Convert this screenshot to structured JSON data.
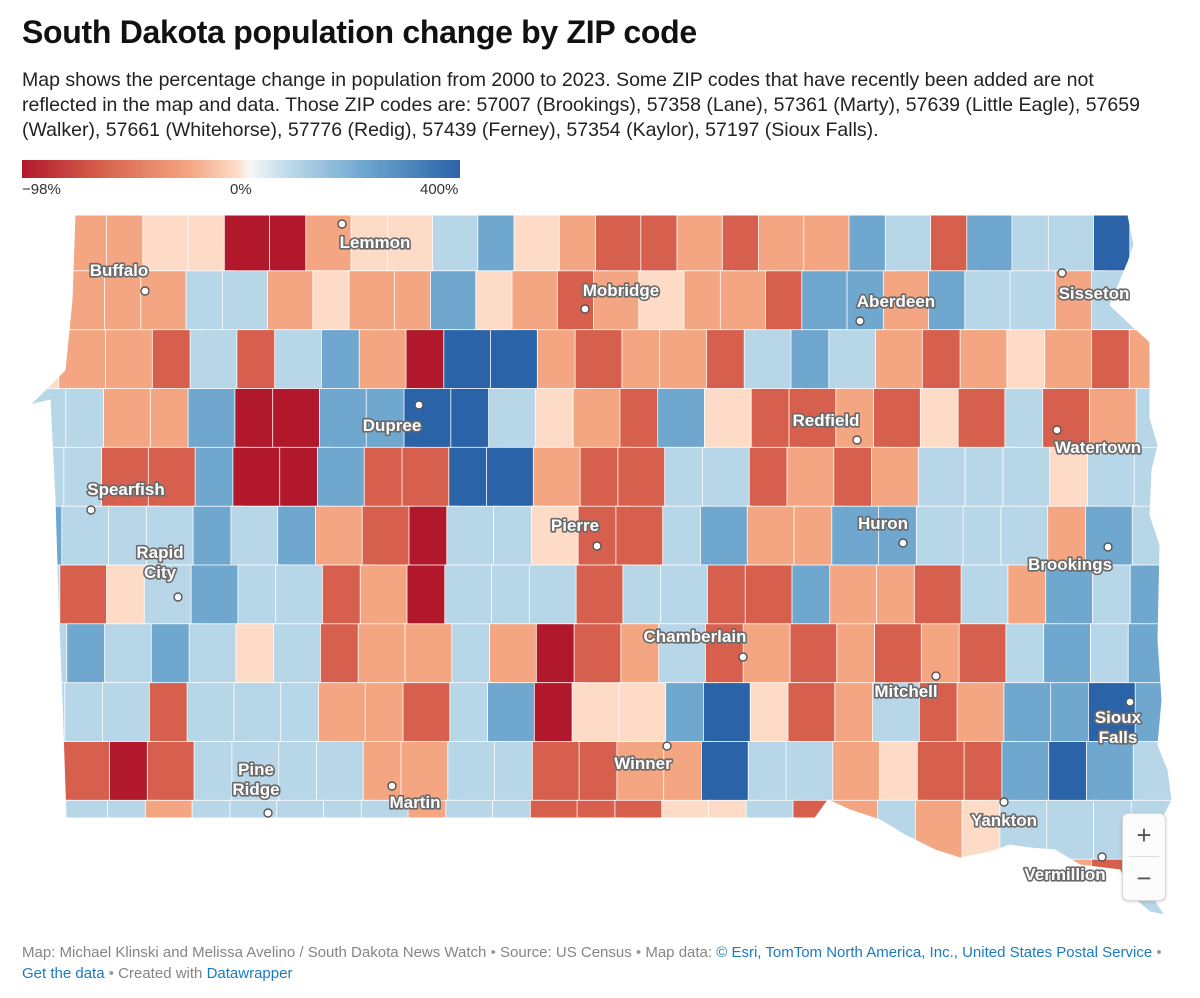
{
  "header": {
    "title": "South Dakota population change by ZIP code",
    "description": "Map shows the percentage change in population from 2000 to 2023. Some ZIP codes that have recently been added are not reflected in the map and data. Those ZIP codes are: 57007 (Brookings), 57358 (Lane), 57361 (Marty), 57639 (Little Eagle), 57659 (Walker), 57661 (Whitehorse), 57776 (Redig), 57439 (Ferney), 57354 (Kaylor), 57197 (Sioux Falls)."
  },
  "legend": {
    "min_label": "−98%",
    "mid_label": "0%",
    "max_label": "400%",
    "min_value": -98,
    "mid_value": 0,
    "max_value": 400,
    "colors": [
      "#b2182b",
      "#d6604d",
      "#f4a582",
      "#fddbc7",
      "#f7f7f7",
      "#b7d6e8",
      "#6fa7cf",
      "#2b63a9"
    ]
  },
  "map": {
    "cities": [
      {
        "id": "lemmon",
        "lines": [
          "Lemmon"
        ]
      },
      {
        "id": "buffalo",
        "lines": [
          "Buffalo"
        ]
      },
      {
        "id": "mobridge",
        "lines": [
          "Mobridge"
        ]
      },
      {
        "id": "aberdeen",
        "lines": [
          "Aberdeen"
        ]
      },
      {
        "id": "sisseton",
        "lines": [
          "Sisseton"
        ]
      },
      {
        "id": "dupree",
        "lines": [
          "Dupree"
        ]
      },
      {
        "id": "redfield",
        "lines": [
          "Redfield"
        ]
      },
      {
        "id": "watertown",
        "lines": [
          "Watertown"
        ]
      },
      {
        "id": "spearfish",
        "lines": [
          "Spearfish"
        ]
      },
      {
        "id": "pierre",
        "lines": [
          "Pierre"
        ]
      },
      {
        "id": "huron",
        "lines": [
          "Huron"
        ]
      },
      {
        "id": "rapid-city",
        "lines": [
          "Rapid",
          "City"
        ]
      },
      {
        "id": "brookings",
        "lines": [
          "Brookings"
        ]
      },
      {
        "id": "chamberlain",
        "lines": [
          "Chamberlain"
        ]
      },
      {
        "id": "mitchell",
        "lines": [
          "Mitchell"
        ]
      },
      {
        "id": "sioux-falls",
        "lines": [
          "Sioux",
          "Falls"
        ]
      },
      {
        "id": "winner",
        "lines": [
          "Winner"
        ]
      },
      {
        "id": "pine-ridge",
        "lines": [
          "Pine",
          "Ridge"
        ]
      },
      {
        "id": "martin",
        "lines": [
          "Martin"
        ]
      },
      {
        "id": "yankton",
        "lines": [
          "Yankton"
        ]
      },
      {
        "id": "vermillion",
        "lines": [
          "Vermillion"
        ]
      }
    ],
    "zoom": {
      "plus": "+",
      "minus": "−"
    }
  },
  "footer": {
    "credit": "Map: Michael Klinski and Melissa Avelino / South Dakota News Watch",
    "bullet": "•",
    "source": "Source: US Census",
    "map_data_prefix": "Map data:",
    "map_data_link": "© Esri, TomTom North America, Inc., United States Postal Service",
    "get_data": "Get the data",
    "created_prefix": "Created with",
    "created_link": "Datawrapper"
  }
}
